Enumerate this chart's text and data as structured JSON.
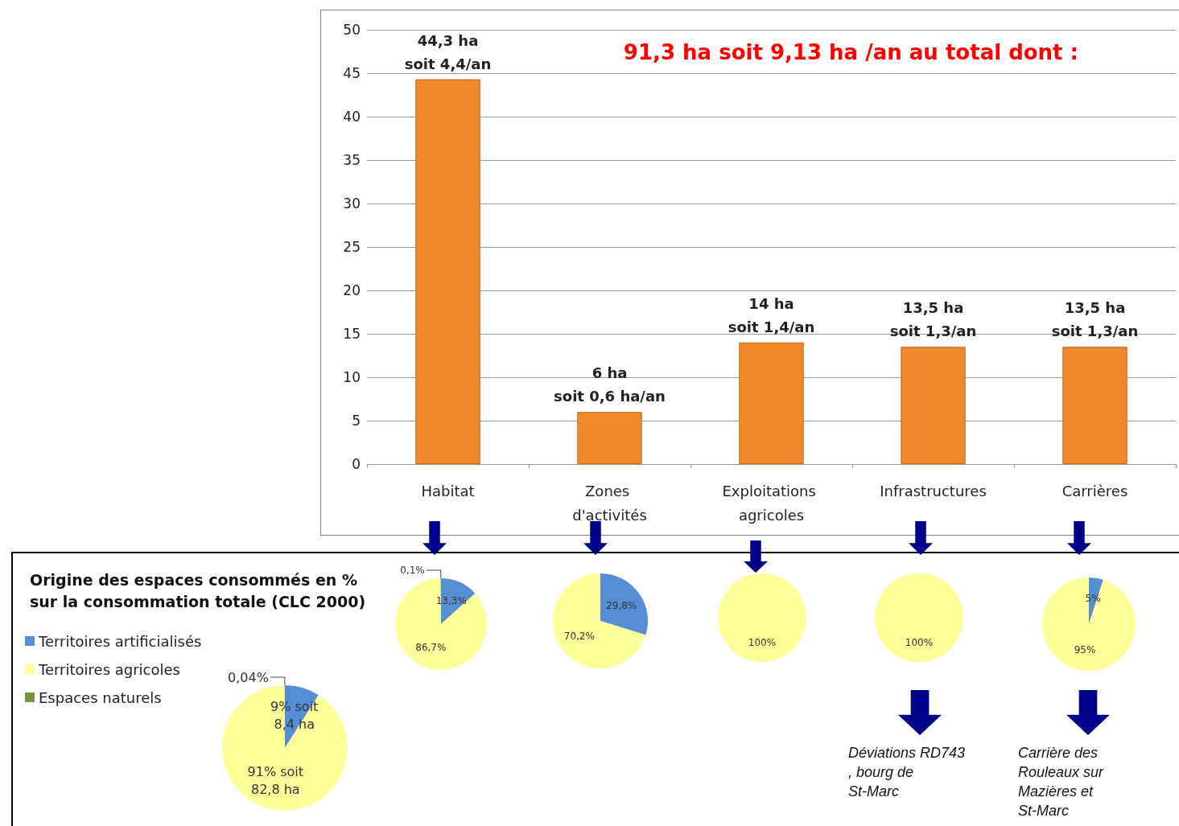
{
  "chart_data": [
    {
      "type": "bar",
      "title": "91,3 ha soit 9,13 ha /an au total dont :",
      "categories": [
        "Habitat",
        "Zones d'activités",
        "Exploitations agricoles",
        "Infrastructures",
        "Carrières"
      ],
      "values": [
        44.3,
        6,
        14,
        13.5,
        13.5
      ],
      "color": "#f0892a",
      "value_labels": [
        "44,3 ha\nsoit 4,4/an",
        "6 ha\nsoit 0,6 ha/an",
        "14 ha\nsoit 1,4/an",
        "13,5 ha\nsoit 1,3/an",
        "13,5 ha\nsoit 1,3/an"
      ],
      "ylim": [
        0,
        50
      ],
      "yticks": [
        0,
        5,
        10,
        15,
        20,
        25,
        30,
        35,
        40,
        45,
        50
      ],
      "grid": "y",
      "legend": false
    },
    {
      "type": "pie",
      "title": "Origine des espaces consommés en %\nsur la consommation totale (CLC 2000)",
      "categories": [
        "Territoires artificialisés",
        "Territoires agricoles",
        "Espaces naturels"
      ],
      "values": [
        9,
        91,
        0.04
      ],
      "colors": [
        "#558ed5",
        "#ffff99",
        "#77933c"
      ],
      "value_labels": [
        "9% soit\n8,4 ha",
        "91% soit\n82,8 ha",
        "0,04%"
      ],
      "legend": "left"
    },
    {
      "type": "pie",
      "categories": [
        null,
        null,
        null
      ],
      "values": [
        13.3,
        86.7,
        0.1
      ],
      "colors": [
        "#558ed5",
        "#ffff99",
        "#77933c"
      ],
      "value_labels": [
        "13,3%",
        "86,7%",
        "0,1%"
      ],
      "legend": false
    },
    {
      "type": "pie",
      "categories": [
        null,
        null
      ],
      "values": [
        29.8,
        70.2
      ],
      "colors": [
        "#558ed5",
        "#ffff99"
      ],
      "value_labels": [
        "29,8%",
        "70,2%"
      ],
      "legend": false
    },
    {
      "type": "pie",
      "categories": [
        null
      ],
      "values": [
        100
      ],
      "colors": [
        "#ffff99"
      ],
      "value_labels": [
        "100%"
      ],
      "legend": false
    },
    {
      "type": "pie",
      "categories": [
        null
      ],
      "values": [
        100
      ],
      "colors": [
        "#ffff99"
      ],
      "value_labels": [
        "100%"
      ],
      "legend": false,
      "annotations": [
        "Déviations RD743, bourg de St-Marc"
      ]
    },
    {
      "type": "pie",
      "categories": [
        null,
        null
      ],
      "values": [
        5,
        95
      ],
      "colors": [
        "#558ed5",
        "#ffff99"
      ],
      "value_labels": [
        "5%",
        "95%"
      ],
      "legend": false,
      "annotations": [
        "Carrière des Rouleaux sur Mazières et St-Marc"
      ]
    }
  ]
}
